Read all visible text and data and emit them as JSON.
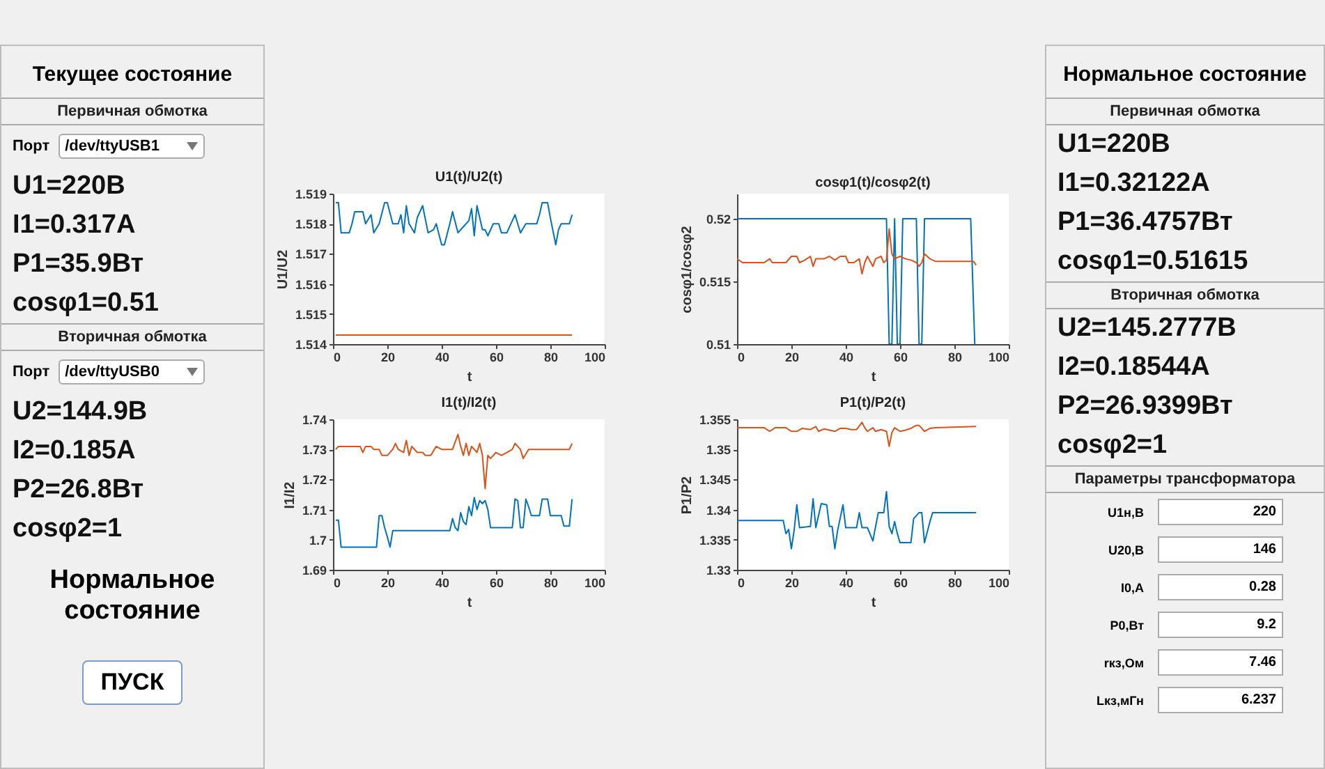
{
  "chart_data": [
    {
      "type": "other",
      "title": "Текущее состояние",
      "annotations": [
        "Первичная обмотка",
        "Порт",
        "/dev/ttyUSB1",
        "U1=220В",
        "I1=0.317А",
        "P1=35.9Вт",
        "cosφ1=0.51",
        "Вторичная обмотка",
        "Порт",
        "/dev/ttyUSB0",
        "U2=144.9В",
        "I2=0.185А",
        "P2=26.8Вт",
        "cosφ2=1",
        "Нормальное состояние",
        "ПУСК"
      ]
    },
    {
      "type": "line",
      "title": "U1(t)/U2(t)",
      "xlabel": "t",
      "ylabel": "U1/U2",
      "xlim": [
        0,
        100
      ],
      "xticks": [
        0,
        20,
        40,
        60,
        80,
        100
      ],
      "ylim": [
        1.514,
        1.519
      ],
      "yticks": [
        1.514,
        1.515,
        1.516,
        1.517,
        1.518,
        1.519
      ],
      "series": [
        {
          "color": "#0072bd",
          "x": [
            1,
            2,
            3,
            6,
            7,
            8,
            11,
            12,
            14,
            15,
            17,
            19,
            20,
            22,
            24,
            25,
            26,
            27,
            28,
            30,
            31,
            33,
            35,
            37,
            38,
            40,
            41,
            43,
            44,
            46,
            48,
            50,
            51,
            52,
            53,
            55,
            56,
            57,
            59,
            61,
            62,
            64,
            66,
            67,
            68,
            69,
            71,
            75,
            76,
            77,
            79,
            80,
            82,
            83,
            84,
            87,
            88
          ],
          "values": [
            1.5187,
            1.5187,
            1.5177,
            1.5177,
            1.518,
            1.5184,
            1.5184,
            1.518,
            1.5183,
            1.5177,
            1.518,
            1.5187,
            1.5187,
            1.518,
            1.518,
            1.5183,
            1.5177,
            1.5186,
            1.518,
            1.5177,
            1.5182,
            1.5186,
            1.5177,
            1.5178,
            1.518,
            1.5173,
            1.5173,
            1.518,
            1.5184,
            1.5177,
            1.5179,
            1.5181,
            1.5185,
            1.5176,
            1.5186,
            1.5178,
            1.5178,
            1.5176,
            1.518,
            1.518,
            1.5177,
            1.5177,
            1.5181,
            1.5183,
            1.518,
            1.5177,
            1.518,
            1.518,
            1.5183,
            1.5187,
            1.5187,
            1.5182,
            1.5173,
            1.5178,
            1.518,
            1.518,
            1.5183
          ]
        },
        {
          "color": "#d95319",
          "x": [
            1,
            30,
            60,
            88
          ],
          "values": [
            1.5143,
            1.5143,
            1.5143,
            1.5143
          ]
        }
      ]
    },
    {
      "type": "line",
      "title": "cosφ1(t)/cosφ2(t)",
      "xlabel": "t",
      "ylabel": "cosφ1/cosφ2",
      "xlim": [
        0,
        100
      ],
      "xticks": [
        0,
        20,
        40,
        60,
        80,
        100
      ],
      "ylim": [
        0.51,
        0.522
      ],
      "yticks": [
        0.51,
        0.515,
        0.52
      ],
      "series": [
        {
          "color": "#0072bd",
          "x": [
            0,
            55,
            56,
            57,
            58,
            59,
            60,
            61,
            66,
            67,
            68,
            69,
            86,
            87.5
          ],
          "values": [
            0.52,
            0.52,
            0.51,
            0.51,
            0.52,
            0.51,
            0.51,
            0.52,
            0.52,
            0.51,
            0.51,
            0.52,
            0.52,
            0.51
          ]
        },
        {
          "color": "#d95319",
          "x": [
            0,
            2,
            10,
            12,
            13,
            18,
            20,
            22,
            23,
            25,
            27,
            28,
            29,
            32,
            34,
            36,
            38,
            40,
            41,
            43,
            45,
            46,
            47,
            48,
            50,
            51,
            53,
            54,
            55,
            56,
            57,
            58,
            60,
            62,
            64,
            66,
            67,
            68,
            69,
            71,
            73,
            87,
            88
          ],
          "values": [
            0.5168,
            0.5165,
            0.5165,
            0.5168,
            0.5165,
            0.5165,
            0.517,
            0.517,
            0.5165,
            0.5167,
            0.517,
            0.5162,
            0.5168,
            0.5168,
            0.517,
            0.5167,
            0.517,
            0.517,
            0.5165,
            0.5165,
            0.5168,
            0.5156,
            0.5165,
            0.517,
            0.5162,
            0.5168,
            0.517,
            0.5165,
            0.5167,
            0.5192,
            0.5172,
            0.5168,
            0.517,
            0.5168,
            0.5167,
            0.5165,
            0.5162,
            0.5165,
            0.5172,
            0.5168,
            0.5166,
            0.5166,
            0.5163
          ]
        }
      ]
    },
    {
      "type": "line",
      "title": "I1(t)/I2(t)",
      "xlabel": "t",
      "ylabel": "I1/I2",
      "xlim": [
        0,
        100
      ],
      "xticks": [
        0,
        20,
        40,
        60,
        80,
        100
      ],
      "ylim": [
        1.69,
        1.74
      ],
      "yticks": [
        1.69,
        1.7,
        1.71,
        1.72,
        1.73,
        1.74
      ],
      "series": [
        {
          "color": "#0072bd",
          "x": [
            1,
            2,
            3,
            16,
            17,
            18,
            19,
            20,
            21,
            22,
            43,
            44,
            45,
            46,
            47,
            48,
            49,
            50,
            51,
            52,
            53,
            54,
            55,
            56,
            57,
            58,
            66,
            67,
            68,
            69,
            70,
            71,
            72,
            73,
            76,
            77,
            79,
            80,
            84,
            85,
            87,
            88
          ],
          "values": [
            1.7065,
            1.7065,
            1.6975,
            1.6975,
            1.708,
            1.708,
            1.704,
            1.701,
            1.6975,
            1.703,
            1.703,
            1.707,
            1.704,
            1.703,
            1.709,
            1.706,
            1.705,
            1.711,
            1.708,
            1.714,
            1.71,
            1.713,
            1.712,
            1.713,
            1.71,
            1.704,
            1.704,
            1.7135,
            1.713,
            1.704,
            1.704,
            1.7135,
            1.711,
            1.708,
            1.708,
            1.7135,
            1.7135,
            1.708,
            1.708,
            1.7045,
            1.7045,
            1.7135
          ]
        },
        {
          "color": "#d95319",
          "x": [
            1,
            2,
            10,
            11,
            12,
            14,
            15,
            17,
            18,
            20,
            22,
            23,
            24,
            26,
            27,
            28,
            29,
            31,
            33,
            34,
            36,
            38,
            40,
            44,
            46,
            47,
            48,
            49,
            50,
            51,
            53,
            54,
            55,
            56,
            57,
            58,
            60,
            62,
            64,
            66,
            67,
            69,
            70,
            72,
            87,
            88
          ],
          "values": [
            1.73,
            1.731,
            1.731,
            1.729,
            1.731,
            1.731,
            1.73,
            1.73,
            1.728,
            1.728,
            1.73,
            1.732,
            1.73,
            1.729,
            1.733,
            1.728,
            1.731,
            1.729,
            1.729,
            1.728,
            1.728,
            1.731,
            1.73,
            1.73,
            1.735,
            1.731,
            1.728,
            1.732,
            1.728,
            1.731,
            1.729,
            1.732,
            1.728,
            1.717,
            1.728,
            1.727,
            1.729,
            1.728,
            1.729,
            1.73,
            1.732,
            1.73,
            1.727,
            1.73,
            1.73,
            1.732
          ]
        }
      ]
    },
    {
      "type": "line",
      "title": "P1(t)/P2(t)",
      "xlabel": "t",
      "ylabel": "P1/P2",
      "xlim": [
        0,
        100
      ],
      "xticks": [
        0,
        20,
        40,
        60,
        80,
        100
      ],
      "ylim": [
        1.33,
        1.355
      ],
      "yticks": [
        1.33,
        1.335,
        1.34,
        1.345,
        1.35,
        1.355
      ],
      "series": [
        {
          "color": "#0072bd",
          "x": [
            0,
            17,
            18,
            19,
            20,
            21,
            22,
            23,
            27,
            28,
            29,
            31,
            33,
            34,
            35,
            36,
            37,
            39,
            40,
            44,
            45,
            46,
            48,
            50,
            51,
            52,
            54,
            55,
            56,
            57,
            58,
            59,
            60,
            64,
            65,
            67,
            68,
            69,
            71,
            72,
            88
          ],
          "values": [
            1.3382,
            1.3382,
            1.336,
            1.3367,
            1.3335,
            1.3365,
            1.3408,
            1.337,
            1.3372,
            1.3418,
            1.337,
            1.341,
            1.3408,
            1.3372,
            1.3372,
            1.3335,
            1.3365,
            1.3408,
            1.337,
            1.337,
            1.3395,
            1.337,
            1.337,
            1.3348,
            1.3372,
            1.3395,
            1.3395,
            1.343,
            1.3372,
            1.336,
            1.338,
            1.336,
            1.3345,
            1.3345,
            1.3385,
            1.3395,
            1.3395,
            1.3345,
            1.338,
            1.3395,
            1.3395
          ]
        },
        {
          "color": "#d95319",
          "x": [
            0,
            10,
            12,
            14,
            18,
            20,
            22,
            24,
            27,
            29,
            30,
            32,
            36,
            38,
            40,
            42,
            44,
            46,
            47,
            48,
            50,
            51,
            53,
            55,
            56,
            57,
            58,
            60,
            62,
            64,
            66,
            67,
            69,
            71,
            73,
            88
          ],
          "values": [
            1.3536,
            1.3536,
            1.353,
            1.3536,
            1.3536,
            1.353,
            1.353,
            1.3535,
            1.3533,
            1.3538,
            1.353,
            1.3534,
            1.353,
            1.3535,
            1.3535,
            1.3533,
            1.3533,
            1.3545,
            1.3536,
            1.353,
            1.3536,
            1.353,
            1.3533,
            1.353,
            1.3505,
            1.3528,
            1.3536,
            1.353,
            1.3532,
            1.3535,
            1.354,
            1.354,
            1.353,
            1.3535,
            1.3536,
            1.3538
          ]
        }
      ]
    },
    {
      "type": "other",
      "title": "Нормальное состояние",
      "annotations": [
        "Первичная обмотка",
        "U1=220В",
        "I1=0.32122А",
        "P1=36.4757Вт",
        "cosφ1=0.51615",
        "Вторичная обмотка",
        "U2=145.2777В",
        "I2=0.18544А",
        "P2=26.9399Вт",
        "cosφ2=1",
        "Параметры трансформатора",
        "U1н,В",
        "220",
        "U20,В",
        "146",
        "I0,А",
        "0.28",
        "P0,Вт",
        "9.2",
        "rкз,Ом",
        "7.46",
        "Lкз,мГн",
        "6.237"
      ]
    }
  ]
}
